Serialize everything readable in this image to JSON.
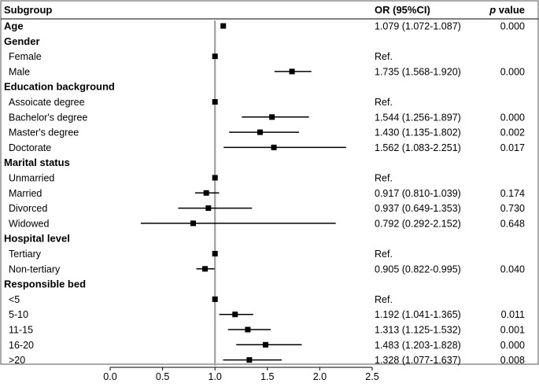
{
  "header": {
    "subgroup": "Subgroup",
    "or": "OR (95%CI)",
    "p_italic": "p",
    "p_suffix": " value"
  },
  "chart_data": {
    "type": "forest",
    "reference_line": 1.0,
    "xlim": [
      0.0,
      2.5
    ],
    "xticks": [
      "0.0",
      "0.5",
      "1.0",
      "1.5",
      "2.0",
      "2.5"
    ],
    "tick_values": [
      0.0,
      0.5,
      1.0,
      1.5,
      2.0,
      2.5
    ],
    "rows": [
      {
        "label": "Age",
        "header": true,
        "or": 1.079,
        "lo": 1.072,
        "hi": 1.087,
        "ci": "1.079 (1.072-1.087)",
        "p": "0.000"
      },
      {
        "label": "Gender",
        "header": true
      },
      {
        "label": "Female",
        "or": 1.0,
        "ci": "Ref.",
        "p": ""
      },
      {
        "label": "Male",
        "or": 1.735,
        "lo": 1.568,
        "hi": 1.92,
        "ci": "1.735 (1.568-1.920)",
        "p": "0.000"
      },
      {
        "label": "Education background",
        "header": true
      },
      {
        "label": "Assoicate degree",
        "or": 1.0,
        "ci": "Ref.",
        "p": ""
      },
      {
        "label": "Bachelor's degree",
        "or": 1.544,
        "lo": 1.256,
        "hi": 1.897,
        "ci": "1.544 (1.256-1.897)",
        "p": "0.000"
      },
      {
        "label": "Master's degree",
        "or": 1.43,
        "lo": 1.135,
        "hi": 1.802,
        "ci": "1.430 (1.135-1.802)",
        "p": "0.002"
      },
      {
        "label": "Doctorate",
        "or": 1.562,
        "lo": 1.083,
        "hi": 2.251,
        "ci": "1.562 (1.083-2.251)",
        "p": "0.017"
      },
      {
        "label": "Marital status",
        "header": true
      },
      {
        "label": "Unmarried",
        "or": 1.0,
        "ci": "Ref.",
        "p": ""
      },
      {
        "label": "Married",
        "or": 0.917,
        "lo": 0.81,
        "hi": 1.039,
        "ci": "0.917 (0.810-1.039)",
        "p": "0.174"
      },
      {
        "label": "Divorced",
        "or": 0.937,
        "lo": 0.649,
        "hi": 1.353,
        "ci": "0.937 (0.649-1.353)",
        "p": "0.730"
      },
      {
        "label": "Widowed",
        "or": 0.792,
        "lo": 0.292,
        "hi": 2.152,
        "ci": "0.792 (0.292-2.152)",
        "p": "0.648"
      },
      {
        "label": "Hospital level",
        "header": true
      },
      {
        "label": "Tertiary",
        "or": 1.0,
        "ci": "Ref.",
        "p": ""
      },
      {
        "label": "Non-tertiary",
        "or": 0.905,
        "lo": 0.822,
        "hi": 0.995,
        "ci": "0.905 (0.822-0.995)",
        "p": "0.040"
      },
      {
        "label": "Responsible bed",
        "header": true
      },
      {
        "label": "<5",
        "or": 1.0,
        "ci": "Ref.",
        "p": ""
      },
      {
        "label": "5-10",
        "or": 1.192,
        "lo": 1.041,
        "hi": 1.365,
        "ci": "1.192 (1.041-1.365)",
        "p": "0.011"
      },
      {
        "label": "11-15",
        "or": 1.313,
        "lo": 1.125,
        "hi": 1.532,
        "ci": "1.313 (1.125-1.532)",
        "p": "0.001"
      },
      {
        "label": "16-20",
        "or": 1.483,
        "lo": 1.203,
        "hi": 1.828,
        "ci": "1.483 (1.203-1.828)",
        "p": "0.000"
      },
      {
        "label": ">20",
        "or": 1.328,
        "lo": 1.077,
        "hi": 1.637,
        "ci": "1.328 (1.077-1.637)",
        "p": "0.008"
      }
    ]
  },
  "colors": {
    "text": "#000000",
    "reference_line": "#a0a0a0",
    "border": "#555555"
  }
}
